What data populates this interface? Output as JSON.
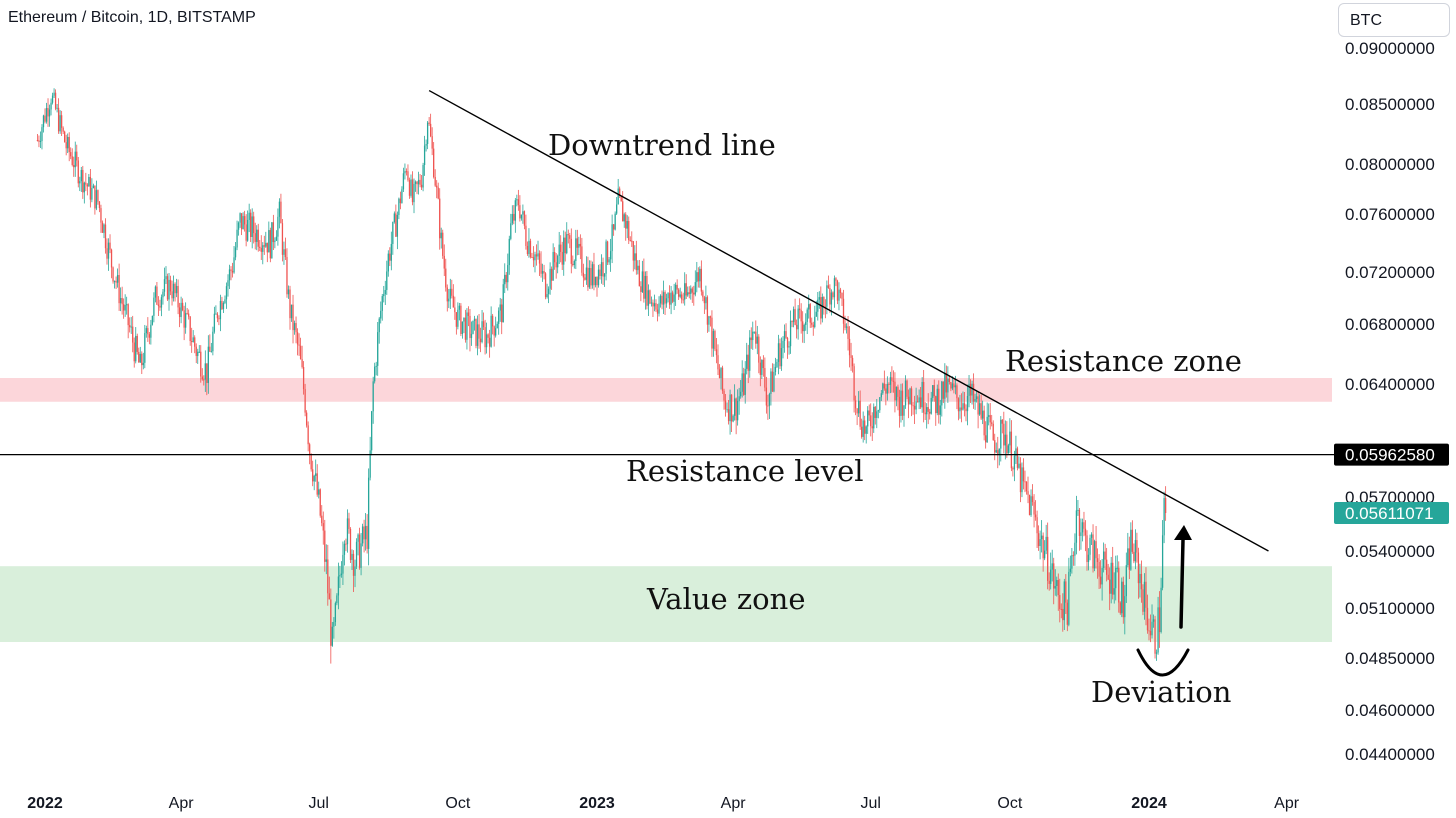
{
  "header": {
    "symbol_title": "Ethereum / Bitcoin, 1D, BITSTAMP",
    "currency": "BTC"
  },
  "colors": {
    "up": "#26a69a",
    "down": "#ef5350",
    "resistance_zone": "#fcd6da",
    "value_zone": "#d9efdb",
    "current_price_tag": "#26a69a",
    "level_tag": "#000000"
  },
  "chart_data": {
    "type": "candlestick",
    "pair": "ETH/BTC",
    "interval": "1D",
    "exchange": "BITSTAMP",
    "y_axis": {
      "ticks": [
        "0.09000000",
        "0.08500000",
        "0.08000000",
        "0.07600000",
        "0.07200000",
        "0.06800000",
        "0.06400000",
        "0.05700000",
        "0.05400000",
        "0.05100000",
        "0.04850000",
        "0.04600000",
        "0.04400000"
      ],
      "scale": "log"
    },
    "x_axis": {
      "ticks": [
        {
          "label": "2022",
          "bold": true,
          "date": "2022-01-01"
        },
        {
          "label": "Apr",
          "bold": false,
          "date": "2022-04-01"
        },
        {
          "label": "Jul",
          "bold": false,
          "date": "2022-07-01"
        },
        {
          "label": "Oct",
          "bold": false,
          "date": "2022-10-01"
        },
        {
          "label": "2023",
          "bold": true,
          "date": "2023-01-01"
        },
        {
          "label": "Apr",
          "bold": false,
          "date": "2023-04-01"
        },
        {
          "label": "Jul",
          "bold": false,
          "date": "2023-07-01"
        },
        {
          "label": "Oct",
          "bold": false,
          "date": "2023-10-01"
        },
        {
          "label": "2024",
          "bold": true,
          "date": "2024-01-01"
        },
        {
          "label": "Apr",
          "bold": false,
          "date": "2024-04-01"
        }
      ]
    },
    "price_path": [
      {
        "date": "2021-12-27",
        "close": 0.082
      },
      {
        "date": "2022-01-05",
        "close": 0.0858
      },
      {
        "date": "2022-01-15",
        "close": 0.0815
      },
      {
        "date": "2022-01-25",
        "close": 0.079
      },
      {
        "date": "2022-02-05",
        "close": 0.077
      },
      {
        "date": "2022-02-12",
        "close": 0.0735
      },
      {
        "date": "2022-02-20",
        "close": 0.07
      },
      {
        "date": "2022-03-01",
        "close": 0.0665
      },
      {
        "date": "2022-03-05",
        "close": 0.065
      },
      {
        "date": "2022-03-15",
        "close": 0.07
      },
      {
        "date": "2022-03-25",
        "close": 0.071
      },
      {
        "date": "2022-04-05",
        "close": 0.068
      },
      {
        "date": "2022-04-12",
        "close": 0.066
      },
      {
        "date": "2022-04-18",
        "close": 0.0648
      },
      {
        "date": "2022-04-25",
        "close": 0.069
      },
      {
        "date": "2022-05-05",
        "close": 0.0725
      },
      {
        "date": "2022-05-10",
        "close": 0.0755
      },
      {
        "date": "2022-05-20",
        "close": 0.0748
      },
      {
        "date": "2022-05-30",
        "close": 0.074
      },
      {
        "date": "2022-06-05",
        "close": 0.076
      },
      {
        "date": "2022-06-12",
        "close": 0.069
      },
      {
        "date": "2022-06-18",
        "close": 0.066
      },
      {
        "date": "2022-06-22",
        "close": 0.063
      },
      {
        "date": "2022-06-25",
        "close": 0.06
      },
      {
        "date": "2022-07-02",
        "close": 0.056
      },
      {
        "date": "2022-07-06",
        "close": 0.053
      },
      {
        "date": "2022-07-10",
        "close": 0.049
      },
      {
        "date": "2022-07-13",
        "close": 0.051
      },
      {
        "date": "2022-07-18",
        "close": 0.0555
      },
      {
        "date": "2022-07-25",
        "close": 0.0535
      },
      {
        "date": "2022-08-02",
        "close": 0.055
      },
      {
        "date": "2022-08-06",
        "close": 0.064
      },
      {
        "date": "2022-08-12",
        "close": 0.07
      },
      {
        "date": "2022-08-16",
        "close": 0.073
      },
      {
        "date": "2022-08-22",
        "close": 0.076
      },
      {
        "date": "2022-08-28",
        "close": 0.08
      },
      {
        "date": "2022-09-01",
        "close": 0.077
      },
      {
        "date": "2022-09-07",
        "close": 0.079
      },
      {
        "date": "2022-09-11",
        "close": 0.084
      },
      {
        "date": "2022-09-15",
        "close": 0.08
      },
      {
        "date": "2022-09-20",
        "close": 0.074
      },
      {
        "date": "2022-09-25",
        "close": 0.07
      },
      {
        "date": "2022-10-01",
        "close": 0.0685
      },
      {
        "date": "2022-10-10",
        "close": 0.0675
      },
      {
        "date": "2022-10-20",
        "close": 0.0672
      },
      {
        "date": "2022-10-30",
        "close": 0.069
      },
      {
        "date": "2022-11-05",
        "close": 0.075
      },
      {
        "date": "2022-11-10",
        "close": 0.077
      },
      {
        "date": "2022-11-15",
        "close": 0.0745
      },
      {
        "date": "2022-11-20",
        "close": 0.0735
      },
      {
        "date": "2022-11-28",
        "close": 0.071
      },
      {
        "date": "2022-12-05",
        "close": 0.073
      },
      {
        "date": "2022-12-12",
        "close": 0.074
      },
      {
        "date": "2022-12-20",
        "close": 0.073
      },
      {
        "date": "2022-12-28",
        "close": 0.0715
      },
      {
        "date": "2023-01-05",
        "close": 0.0725
      },
      {
        "date": "2023-01-12",
        "close": 0.0745
      },
      {
        "date": "2023-01-15",
        "close": 0.077
      },
      {
        "date": "2023-01-20",
        "close": 0.0755
      },
      {
        "date": "2023-01-28",
        "close": 0.072
      },
      {
        "date": "2023-02-05",
        "close": 0.07
      },
      {
        "date": "2023-02-12",
        "close": 0.0695
      },
      {
        "date": "2023-02-20",
        "close": 0.0705
      },
      {
        "date": "2023-03-01",
        "close": 0.07
      },
      {
        "date": "2023-03-10",
        "close": 0.072
      },
      {
        "date": "2023-03-15",
        "close": 0.069
      },
      {
        "date": "2023-03-20",
        "close": 0.066
      },
      {
        "date": "2023-03-26",
        "close": 0.063
      },
      {
        "date": "2023-04-02",
        "close": 0.0625
      },
      {
        "date": "2023-04-08",
        "close": 0.064
      },
      {
        "date": "2023-04-15",
        "close": 0.068
      },
      {
        "date": "2023-04-20",
        "close": 0.065
      },
      {
        "date": "2023-04-24",
        "close": 0.063
      },
      {
        "date": "2023-05-01",
        "close": 0.066
      },
      {
        "date": "2023-05-10",
        "close": 0.068
      },
      {
        "date": "2023-05-20",
        "close": 0.0685
      },
      {
        "date": "2023-05-28",
        "close": 0.069
      },
      {
        "date": "2023-06-03",
        "close": 0.0705
      },
      {
        "date": "2023-06-08",
        "close": 0.071
      },
      {
        "date": "2023-06-12",
        "close": 0.069
      },
      {
        "date": "2023-06-16",
        "close": 0.067
      },
      {
        "date": "2023-06-20",
        "close": 0.064
      },
      {
        "date": "2023-06-24",
        "close": 0.062
      },
      {
        "date": "2023-06-28",
        "close": 0.061
      },
      {
        "date": "2023-07-05",
        "close": 0.063
      },
      {
        "date": "2023-07-12",
        "close": 0.064
      },
      {
        "date": "2023-07-20",
        "close": 0.063
      },
      {
        "date": "2023-07-28",
        "close": 0.0635
      },
      {
        "date": "2023-08-05",
        "close": 0.0632
      },
      {
        "date": "2023-08-12",
        "close": 0.0628
      },
      {
        "date": "2023-08-20",
        "close": 0.0638
      },
      {
        "date": "2023-08-28",
        "close": 0.063
      },
      {
        "date": "2023-09-05",
        "close": 0.0632
      },
      {
        "date": "2023-09-12",
        "close": 0.062
      },
      {
        "date": "2023-09-20",
        "close": 0.0605
      },
      {
        "date": "2023-09-28",
        "close": 0.061
      },
      {
        "date": "2023-10-05",
        "close": 0.059
      },
      {
        "date": "2023-10-10",
        "close": 0.0575
      },
      {
        "date": "2023-10-15",
        "close": 0.0565
      },
      {
        "date": "2023-10-22",
        "close": 0.0545
      },
      {
        "date": "2023-10-28",
        "close": 0.053
      },
      {
        "date": "2023-11-02",
        "close": 0.0515
      },
      {
        "date": "2023-11-08",
        "close": 0.0512
      },
      {
        "date": "2023-11-12",
        "close": 0.054
      },
      {
        "date": "2023-11-14",
        "close": 0.0565
      },
      {
        "date": "2023-11-20",
        "close": 0.0545
      },
      {
        "date": "2023-11-28",
        "close": 0.0535
      },
      {
        "date": "2023-12-05",
        "close": 0.0525
      },
      {
        "date": "2023-12-10",
        "close": 0.053
      },
      {
        "date": "2023-12-15",
        "close": 0.051
      },
      {
        "date": "2023-12-20",
        "close": 0.0545
      },
      {
        "date": "2023-12-25",
        "close": 0.053
      },
      {
        "date": "2023-12-30",
        "close": 0.051
      },
      {
        "date": "2024-01-02",
        "close": 0.05
      },
      {
        "date": "2024-01-05",
        "close": 0.0495
      },
      {
        "date": "2024-01-08",
        "close": 0.0505
      },
      {
        "date": "2024-01-11",
        "close": 0.0565
      },
      {
        "date": "2024-01-12",
        "close": 0.05611071
      }
    ],
    "horizontal_level": {
      "label": "Resistance level",
      "value": 0.0596258,
      "value_label": "0.05962580"
    },
    "current_price": {
      "value": 0.05611071,
      "value_label": "0.05611071"
    },
    "zones": [
      {
        "label": "Resistance zone",
        "low": 0.0629,
        "high": 0.0644,
        "color": "#fcd6da"
      },
      {
        "label": "Value zone",
        "low": 0.0493,
        "high": 0.0532,
        "color": "#d9efdb"
      }
    ],
    "trendline": {
      "label": "Downtrend line",
      "start": {
        "date": "2022-09-12",
        "value": 0.0862
      },
      "end": {
        "date": "2024-03-20",
        "value": 0.054
      }
    },
    "annotations": {
      "downtrend": "Downtrend line",
      "resistance_zone": "Resistance zone",
      "resistance_level": "Resistance level",
      "value_zone": "Value zone",
      "deviation": "Deviation"
    }
  }
}
